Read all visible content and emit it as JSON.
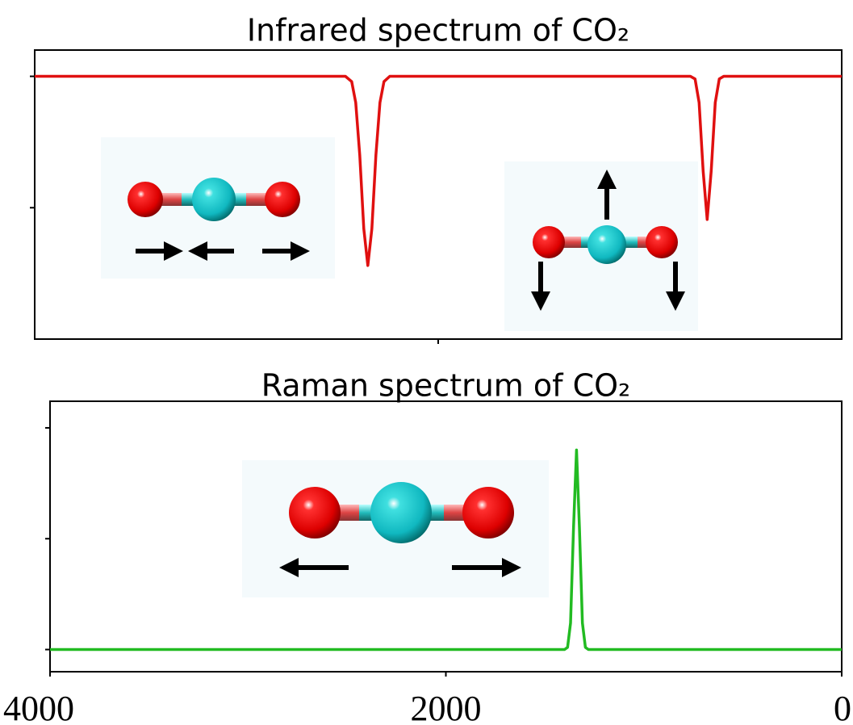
{
  "chart_data": [
    {
      "type": "line",
      "title": "Infrared spectrum of CO₂",
      "x": [
        4000,
        2460,
        2429,
        2409,
        2389,
        2369,
        2349,
        2329,
        2309,
        2289,
        2269,
        2240,
        750,
        727,
        707,
        687,
        667,
        647,
        627,
        607,
        585,
        0
      ],
      "values": [
        1,
        1,
        0.98,
        0.9,
        0.7,
        0.42,
        0.28,
        0.42,
        0.7,
        0.9,
        0.98,
        1,
        1,
        0.99,
        0.9,
        0.64,
        0.455,
        0.64,
        0.9,
        0.99,
        1,
        1
      ],
      "color": "#e01010",
      "xlim": [
        4000,
        0
      ],
      "xticks": [
        2000
      ],
      "ylim": [
        0,
        1.1
      ],
      "yticks": [
        0.5,
        1
      ]
    },
    {
      "type": "line",
      "title": "Raman spectrum of CO₂",
      "x": [
        4000,
        1400,
        1385,
        1370,
        1355,
        1340,
        1325,
        1310,
        1295,
        1280,
        0
      ],
      "values": [
        0,
        0,
        0.01,
        0.12,
        0.55,
        0.9,
        0.55,
        0.12,
        0.01,
        0,
        0
      ],
      "color": "#22bb22",
      "xlim": [
        4000,
        0
      ],
      "xticks": [
        4000,
        2000,
        0
      ],
      "ylim": [
        -0.1,
        1.12
      ],
      "yticks": [
        0,
        0.5,
        1
      ]
    }
  ]
}
